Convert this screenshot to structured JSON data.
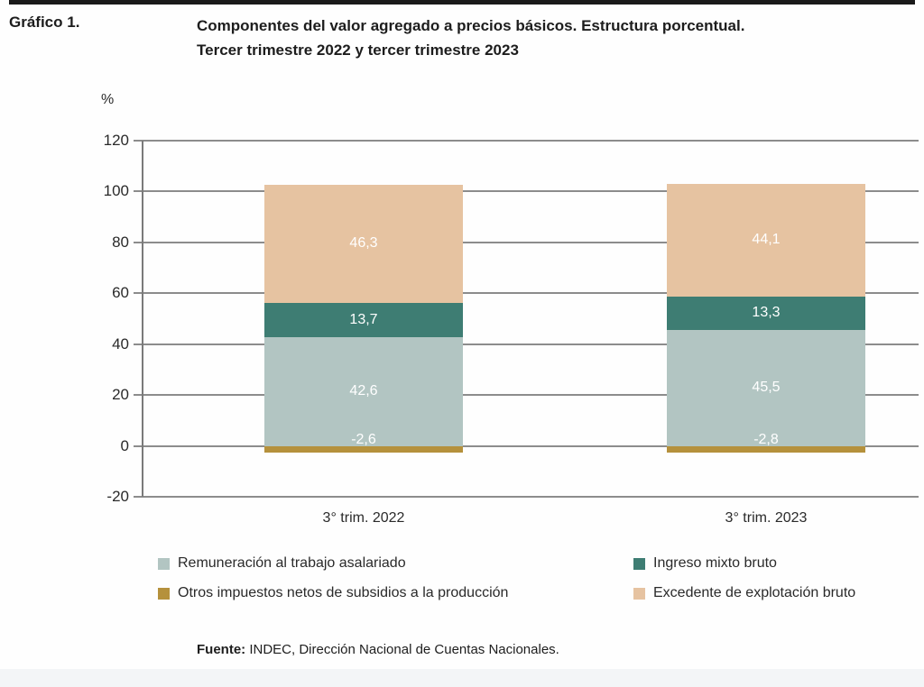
{
  "page": {
    "background_color": "#fefefe",
    "top_strip_color": "#1a1a1a",
    "bottom_strip_color": "#f3f5f7"
  },
  "header": {
    "figure_label": "Gráfico 1.",
    "title_line1": "Componentes del valor agregado a precios básicos. Estructura porcentual.",
    "title_line2": "Tercer trimestre 2022 y tercer trimestre 2023"
  },
  "chart_data": {
    "type": "bar",
    "stacked": true,
    "title": "Componentes del valor agregado a precios básicos. Estructura porcentual. Tercer trimestre 2022 y tercer trimestre 2023",
    "xlabel": "",
    "ylabel": "%",
    "ylim": [
      -20,
      120
    ],
    "ytick_step": 20,
    "grid": true,
    "legend_position": "bottom",
    "decimal_separator": ",",
    "gridline_color": "#8c8c8c",
    "axis_color": "#7a7a7a",
    "bar_label_color": "#ffffff",
    "categories": [
      "3° trim. 2022",
      "3° trim. 2023"
    ],
    "series": [
      {
        "name": "Remuneración al trabajo asalariado",
        "color": "#b2c5c2",
        "values": [
          42.6,
          45.5
        ]
      },
      {
        "name": "Ingreso mixto bruto",
        "color": "#3e7d73",
        "values": [
          13.7,
          13.3
        ]
      },
      {
        "name": "Excedente de explotación bruto",
        "color": "#e6c3a1",
        "values": [
          46.3,
          44.1
        ]
      },
      {
        "name": "Otros impuestos netos de subsidios a la producción",
        "color": "#b5913c",
        "values": [
          -2.6,
          -2.8
        ]
      }
    ]
  },
  "legend": {
    "items": [
      {
        "label": "Remuneración al trabajo asalariado",
        "color": "#b2c5c2"
      },
      {
        "label": "Ingreso mixto bruto",
        "color": "#3e7d73"
      },
      {
        "label": "Otros impuestos netos de subsidios a la producción",
        "color": "#b5913c"
      },
      {
        "label": "Excedente de explotación bruto",
        "color": "#e6c3a1"
      }
    ]
  },
  "footer": {
    "source_label": "Fuente:",
    "source_text": " INDEC, Dirección Nacional de Cuentas Nacionales."
  }
}
